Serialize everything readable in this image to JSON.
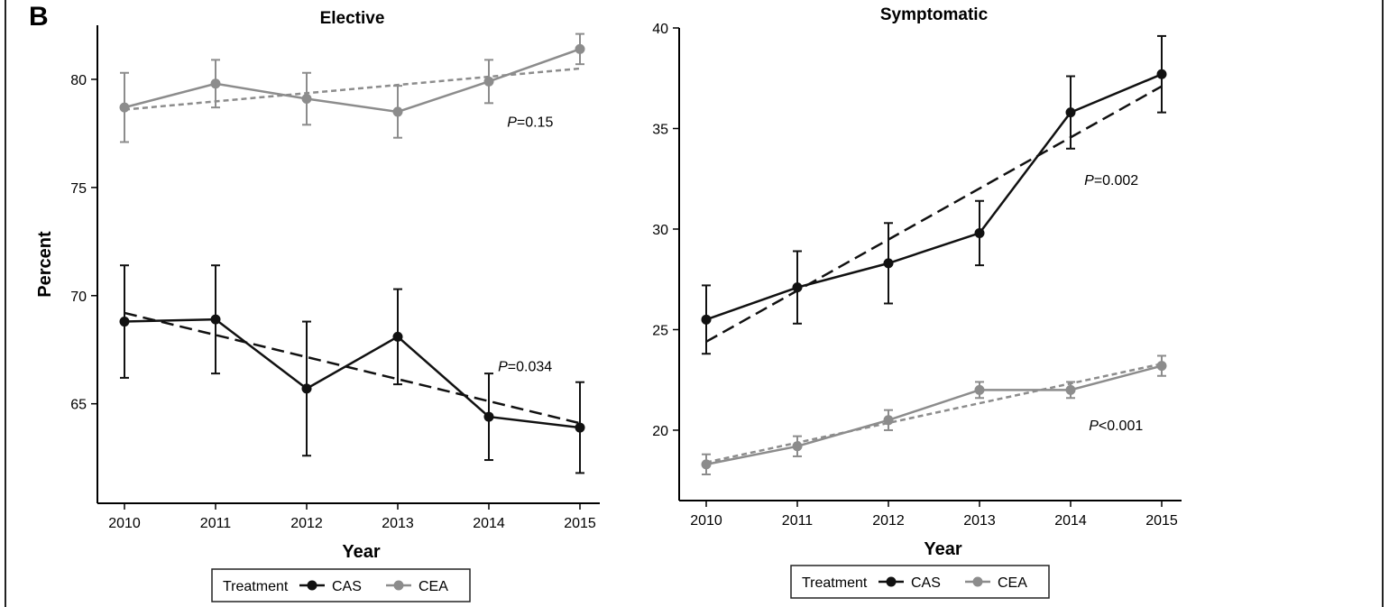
{
  "panel_label": "B",
  "legend": {
    "title": "Treatment",
    "items": [
      {
        "label": "CAS",
        "color": "#111111"
      },
      {
        "label": "CEA",
        "color": "#8c8c8c"
      }
    ]
  },
  "chart_data": [
    {
      "type": "line",
      "title": "Elective",
      "xlabel": "Year",
      "ylabel": "Percent",
      "x": [
        2010,
        2011,
        2012,
        2013,
        2014,
        2015
      ],
      "xticks": [
        "2010",
        "2011",
        "2012",
        "2013",
        "2014",
        "2015"
      ],
      "yticks": [
        65,
        70,
        75,
        80
      ],
      "ylim": [
        60.4,
        82.5
      ],
      "grid": false,
      "legend_position": "bottom",
      "series": [
        {
          "name": "CAS",
          "color": "#111111",
          "values": [
            68.8,
            68.9,
            65.7,
            68.1,
            64.4,
            63.9
          ],
          "err_low": [
            66.2,
            66.4,
            62.6,
            65.9,
            62.4,
            61.8
          ],
          "err_high": [
            71.4,
            71.4,
            68.8,
            70.3,
            66.4,
            66.0
          ],
          "trend": [
            69.2,
            64.1
          ],
          "trend_style": "long-dash",
          "p_label": "P=0.034",
          "p_anchor": [
            2014.1,
            66.5
          ]
        },
        {
          "name": "CEA",
          "color": "#8c8c8c",
          "values": [
            78.7,
            79.8,
            79.1,
            78.5,
            79.9,
            81.4
          ],
          "err_low": [
            77.1,
            78.7,
            77.9,
            77.3,
            78.9,
            80.7
          ],
          "err_high": [
            80.3,
            80.9,
            80.3,
            79.7,
            80.9,
            82.1
          ],
          "trend": [
            78.6,
            80.5
          ],
          "trend_style": "short-dash",
          "p_label": "P=0.15",
          "p_anchor": [
            2014.2,
            77.8
          ]
        }
      ]
    },
    {
      "type": "line",
      "title": "Symptomatic",
      "xlabel": "Year",
      "ylabel": "",
      "x": [
        2010,
        2011,
        2012,
        2013,
        2014,
        2015
      ],
      "xticks": [
        "2010",
        "2011",
        "2012",
        "2013",
        "2014",
        "2015"
      ],
      "yticks": [
        20,
        25,
        30,
        35,
        40
      ],
      "ylim": [
        16.5,
        40.0
      ],
      "grid": false,
      "legend_position": "bottom",
      "series": [
        {
          "name": "CAS",
          "color": "#111111",
          "values": [
            25.5,
            27.1,
            28.3,
            29.8,
            35.8,
            37.7
          ],
          "err_low": [
            23.8,
            25.3,
            26.3,
            28.2,
            34.0,
            35.8
          ],
          "err_high": [
            27.2,
            28.9,
            30.3,
            31.4,
            37.6,
            39.6
          ],
          "trend": [
            24.4,
            37.1
          ],
          "trend_style": "long-dash",
          "p_label": "P=0.002",
          "p_anchor": [
            2014.15,
            32.2
          ]
        },
        {
          "name": "CEA",
          "color": "#8c8c8c",
          "values": [
            18.3,
            19.2,
            20.5,
            22.0,
            22.0,
            23.2
          ],
          "err_low": [
            17.8,
            18.7,
            20.0,
            21.6,
            21.6,
            22.7
          ],
          "err_high": [
            18.8,
            19.7,
            21.0,
            22.4,
            22.4,
            23.7
          ],
          "trend": [
            18.4,
            23.3
          ],
          "trend_style": "short-dash",
          "p_label": "P<0.001",
          "p_anchor": [
            2014.2,
            20.0
          ]
        }
      ]
    }
  ]
}
